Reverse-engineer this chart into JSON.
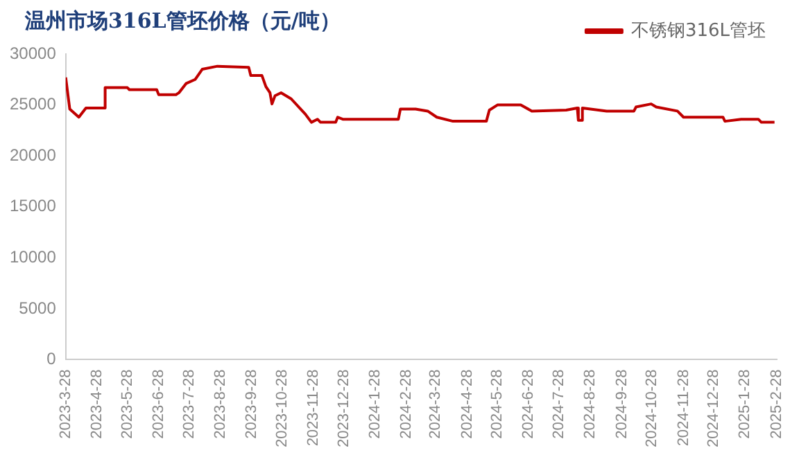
{
  "chart_data": {
    "type": "line",
    "title": "温州市场316L管坯价格（元/吨）",
    "x": [
      "2023-03-28",
      "2023-04-01",
      "2023-04-10",
      "2023-04-17",
      "2023-05-05",
      "2023-05-06",
      "2023-05-28",
      "2023-05-30",
      "2023-06-26",
      "2023-06-28",
      "2023-07-15",
      "2023-07-18",
      "2023-07-25",
      "2023-08-03",
      "2023-08-10",
      "2023-08-25",
      "2023-09-25",
      "2023-09-27",
      "2023-10-08",
      "2023-10-12",
      "2023-10-16",
      "2023-10-18",
      "2023-10-21",
      "2023-10-27",
      "2023-11-06",
      "2023-11-20",
      "2023-11-26",
      "2023-12-02",
      "2023-12-05",
      "2023-12-20",
      "2023-12-22",
      "2023-12-27",
      "2024-02-20",
      "2024-02-22",
      "2024-03-08",
      "2024-03-20",
      "2024-03-29",
      "2024-04-14",
      "2024-05-17",
      "2024-05-20",
      "2024-05-28",
      "2024-06-20",
      "2024-07-01",
      "2024-08-04",
      "2024-08-15",
      "2024-08-16",
      "2024-08-19",
      "2024-08-20",
      "2024-09-13",
      "2024-10-10",
      "2024-10-12",
      "2024-10-27",
      "2024-11-01",
      "2024-11-22",
      "2024-11-28",
      "2025-01-06",
      "2025-01-08",
      "2025-01-24",
      "2025-02-10",
      "2025-02-13",
      "2025-02-26"
    ],
    "series": [
      {
        "name": "不锈钢316L管坯",
        "color": "#c00000",
        "values": [
          27700,
          24600,
          23800,
          24700,
          24700,
          26700,
          26700,
          26500,
          26500,
          26000,
          26000,
          26200,
          27100,
          27500,
          28500,
          28800,
          28700,
          27900,
          27900,
          26800,
          26200,
          25100,
          25900,
          26200,
          25600,
          24100,
          23300,
          23600,
          23300,
          23300,
          23800,
          23600,
          23600,
          24600,
          24600,
          24400,
          23800,
          23400,
          23400,
          24500,
          25000,
          25000,
          24400,
          24500,
          24700,
          23500,
          23500,
          24700,
          24400,
          24400,
          24800,
          25100,
          24800,
          24400,
          23800,
          23800,
          23400,
          23600,
          23600,
          23300,
          23300
        ]
      }
    ],
    "xlim": [
      "2023-03-28",
      "2025-02-28"
    ],
    "xticks": [
      {
        "value": "2023-03-28",
        "label": "2023-3-28"
      },
      {
        "value": "2023-04-28",
        "label": "2023-4-28"
      },
      {
        "value": "2023-05-28",
        "label": "2023-5-28"
      },
      {
        "value": "2023-06-28",
        "label": "2023-6-28"
      },
      {
        "value": "2023-07-28",
        "label": "2023-7-28"
      },
      {
        "value": "2023-08-28",
        "label": "2023-8-28"
      },
      {
        "value": "2023-09-28",
        "label": "2023-9-28"
      },
      {
        "value": "2023-10-28",
        "label": "2023-10-28"
      },
      {
        "value": "2023-11-28",
        "label": "2023-11-28"
      },
      {
        "value": "2023-12-28",
        "label": "2023-12-28"
      },
      {
        "value": "2024-01-28",
        "label": "2024-1-28"
      },
      {
        "value": "2024-02-28",
        "label": "2024-2-28"
      },
      {
        "value": "2024-03-28",
        "label": "2024-3-28"
      },
      {
        "value": "2024-04-28",
        "label": "2024-4-28"
      },
      {
        "value": "2024-05-28",
        "label": "2024-5-28"
      },
      {
        "value": "2024-06-28",
        "label": "2024-6-28"
      },
      {
        "value": "2024-07-28",
        "label": "2024-7-28"
      },
      {
        "value": "2024-08-28",
        "label": "2024-8-28"
      },
      {
        "value": "2024-09-28",
        "label": "2024-9-28"
      },
      {
        "value": "2024-10-28",
        "label": "2024-10-28"
      },
      {
        "value": "2024-11-28",
        "label": "2024-11-28"
      },
      {
        "value": "2024-12-28",
        "label": "2024-12-28"
      },
      {
        "value": "2025-01-28",
        "label": "2025-1-28"
      },
      {
        "value": "2025-02-28",
        "label": "2025-2-28"
      }
    ],
    "ylim": [
      0,
      30000
    ],
    "yticks": [
      0,
      5000,
      10000,
      15000,
      20000,
      25000,
      30000
    ],
    "grid": false,
    "legend": "top right",
    "marker": "none",
    "line_style": "solid"
  }
}
